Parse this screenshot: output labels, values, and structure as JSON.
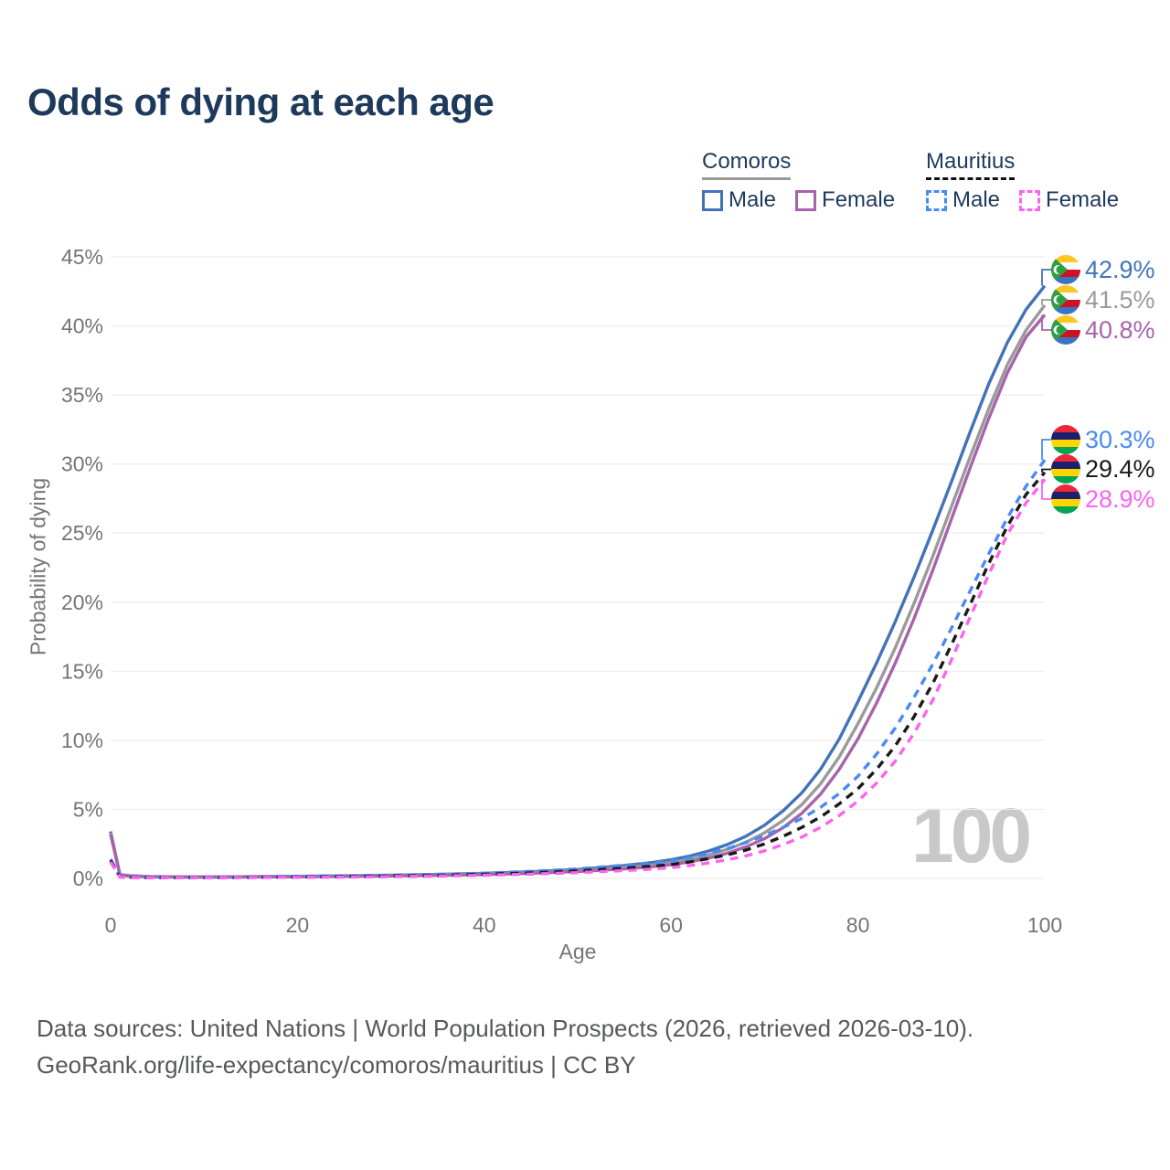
{
  "header": {
    "title": "Odds of dying at each age"
  },
  "legend": {
    "groups": [
      {
        "name": "Comoros",
        "line_style": "solid",
        "underline_color": "#999999",
        "items": [
          {
            "label": "Male",
            "color": "#4273b8",
            "dashed": false
          },
          {
            "label": "Female",
            "color": "#a763ab",
            "dashed": false
          }
        ]
      },
      {
        "name": "Mauritius",
        "line_style": "dashed",
        "underline_color": "#111111",
        "items": [
          {
            "label": "Male",
            "color": "#4a8af4",
            "dashed": true
          },
          {
            "label": "Female",
            "color": "#fb63f0",
            "dashed": true
          }
        ]
      }
    ]
  },
  "chart_data": {
    "type": "line",
    "title": "Odds of dying at each age",
    "xlabel": "Age",
    "ylabel": "Probability of dying",
    "x_range": [
      0,
      100
    ],
    "y_range_pct": [
      0,
      45
    ],
    "xticks": [
      0,
      20,
      40,
      60,
      80,
      100
    ],
    "yticks_pct": [
      0,
      5,
      10,
      15,
      20,
      25,
      30,
      35,
      40,
      45
    ],
    "grid": true,
    "legend_position": "top-right",
    "watermark": "100",
    "series": [
      {
        "name": "Comoros Male",
        "country": "Comoros",
        "sex": "Male",
        "color": "#4273b8",
        "dashed": false,
        "flag": "comoros",
        "end_label": "42.9%",
        "points": [
          [
            0,
            3.4
          ],
          [
            1,
            0.28
          ],
          [
            2,
            0.2
          ],
          [
            4,
            0.14
          ],
          [
            8,
            0.11
          ],
          [
            12,
            0.11
          ],
          [
            16,
            0.13
          ],
          [
            20,
            0.15
          ],
          [
            25,
            0.19
          ],
          [
            30,
            0.23
          ],
          [
            35,
            0.29
          ],
          [
            40,
            0.37
          ],
          [
            45,
            0.48
          ],
          [
            50,
            0.65
          ],
          [
            55,
            0.93
          ],
          [
            58,
            1.15
          ],
          [
            60,
            1.35
          ],
          [
            62,
            1.62
          ],
          [
            64,
            1.98
          ],
          [
            66,
            2.45
          ],
          [
            68,
            3.05
          ],
          [
            70,
            3.85
          ],
          [
            72,
            4.9
          ],
          [
            74,
            6.2
          ],
          [
            76,
            7.9
          ],
          [
            78,
            10.1
          ],
          [
            80,
            12.8
          ],
          [
            82,
            15.6
          ],
          [
            84,
            18.6
          ],
          [
            86,
            21.8
          ],
          [
            88,
            25.2
          ],
          [
            90,
            28.7
          ],
          [
            92,
            32.3
          ],
          [
            94,
            35.8
          ],
          [
            96,
            38.8
          ],
          [
            98,
            41.2
          ],
          [
            100,
            42.9
          ]
        ]
      },
      {
        "name": "Comoros Both sexes",
        "country": "Comoros",
        "sex": "Both",
        "color": "#9a9a9a",
        "dashed": false,
        "flag": "comoros",
        "end_label": "41.5%",
        "points": [
          [
            0,
            3.3
          ],
          [
            1,
            0.26
          ],
          [
            2,
            0.18
          ],
          [
            4,
            0.13
          ],
          [
            8,
            0.1
          ],
          [
            12,
            0.1
          ],
          [
            16,
            0.12
          ],
          [
            20,
            0.14
          ],
          [
            25,
            0.17
          ],
          [
            30,
            0.2
          ],
          [
            35,
            0.25
          ],
          [
            40,
            0.32
          ],
          [
            45,
            0.42
          ],
          [
            50,
            0.57
          ],
          [
            55,
            0.8
          ],
          [
            58,
            0.98
          ],
          [
            60,
            1.15
          ],
          [
            62,
            1.38
          ],
          [
            64,
            1.7
          ],
          [
            66,
            2.1
          ],
          [
            68,
            2.62
          ],
          [
            70,
            3.3
          ],
          [
            72,
            4.2
          ],
          [
            74,
            5.35
          ],
          [
            76,
            6.85
          ],
          [
            78,
            8.8
          ],
          [
            80,
            11.2
          ],
          [
            82,
            13.8
          ],
          [
            84,
            16.7
          ],
          [
            86,
            19.9
          ],
          [
            88,
            23.3
          ],
          [
            90,
            26.9
          ],
          [
            92,
            30.5
          ],
          [
            94,
            34
          ],
          [
            96,
            37.2
          ],
          [
            98,
            39.7
          ],
          [
            100,
            41.5
          ]
        ]
      },
      {
        "name": "Comoros Female",
        "country": "Comoros",
        "sex": "Female",
        "color": "#a763ab",
        "dashed": false,
        "flag": "comoros",
        "end_label": "40.8%",
        "points": [
          [
            0,
            3.2
          ],
          [
            1,
            0.24
          ],
          [
            2,
            0.17
          ],
          [
            4,
            0.12
          ],
          [
            8,
            0.09
          ],
          [
            12,
            0.09
          ],
          [
            16,
            0.11
          ],
          [
            20,
            0.12
          ],
          [
            25,
            0.15
          ],
          [
            30,
            0.18
          ],
          [
            35,
            0.22
          ],
          [
            40,
            0.28
          ],
          [
            45,
            0.37
          ],
          [
            50,
            0.5
          ],
          [
            55,
            0.69
          ],
          [
            58,
            0.85
          ],
          [
            60,
            1
          ],
          [
            62,
            1.2
          ],
          [
            64,
            1.47
          ],
          [
            66,
            1.82
          ],
          [
            68,
            2.28
          ],
          [
            70,
            2.88
          ],
          [
            72,
            3.68
          ],
          [
            74,
            4.72
          ],
          [
            76,
            6.1
          ],
          [
            78,
            7.9
          ],
          [
            80,
            10.1
          ],
          [
            82,
            12.7
          ],
          [
            84,
            15.6
          ],
          [
            86,
            18.8
          ],
          [
            88,
            22.3
          ],
          [
            90,
            26
          ],
          [
            92,
            29.7
          ],
          [
            94,
            33.3
          ],
          [
            96,
            36.6
          ],
          [
            98,
            39.2
          ],
          [
            100,
            40.8
          ]
        ]
      },
      {
        "name": "Mauritius Male",
        "country": "Mauritius",
        "sex": "Male",
        "color": "#4a8af4",
        "dashed": true,
        "flag": "mauritius",
        "end_label": "30.3%",
        "points": [
          [
            0,
            1.4
          ],
          [
            1,
            0.12
          ],
          [
            2,
            0.09
          ],
          [
            4,
            0.07
          ],
          [
            8,
            0.06
          ],
          [
            12,
            0.07
          ],
          [
            16,
            0.1
          ],
          [
            20,
            0.13
          ],
          [
            25,
            0.17
          ],
          [
            30,
            0.22
          ],
          [
            35,
            0.29
          ],
          [
            40,
            0.38
          ],
          [
            45,
            0.51
          ],
          [
            50,
            0.69
          ],
          [
            55,
            0.95
          ],
          [
            58,
            1.12
          ],
          [
            60,
            1.25
          ],
          [
            62,
            1.5
          ],
          [
            64,
            1.8
          ],
          [
            66,
            2.15
          ],
          [
            68,
            2.6
          ],
          [
            70,
            3.1
          ],
          [
            72,
            3.7
          ],
          [
            74,
            4.35
          ],
          [
            76,
            5.15
          ],
          [
            78,
            6.15
          ],
          [
            80,
            7.4
          ],
          [
            82,
            9
          ],
          [
            84,
            10.9
          ],
          [
            86,
            13.1
          ],
          [
            88,
            15.5
          ],
          [
            90,
            18.1
          ],
          [
            92,
            20.8
          ],
          [
            94,
            23.5
          ],
          [
            96,
            26.1
          ],
          [
            98,
            28.4
          ],
          [
            100,
            30.3
          ]
        ]
      },
      {
        "name": "Mauritius Both sexes",
        "country": "Mauritius",
        "sex": "Both",
        "color": "#1a1a1a",
        "dashed": true,
        "flag": "mauritius",
        "end_label": "29.4%",
        "points": [
          [
            0,
            1.3
          ],
          [
            1,
            0.11
          ],
          [
            2,
            0.08
          ],
          [
            4,
            0.06
          ],
          [
            8,
            0.06
          ],
          [
            12,
            0.06
          ],
          [
            16,
            0.08
          ],
          [
            20,
            0.1
          ],
          [
            25,
            0.13
          ],
          [
            30,
            0.17
          ],
          [
            35,
            0.22
          ],
          [
            40,
            0.3
          ],
          [
            45,
            0.4
          ],
          [
            50,
            0.54
          ],
          [
            55,
            0.74
          ],
          [
            58,
            0.88
          ],
          [
            60,
            1
          ],
          [
            62,
            1.2
          ],
          [
            64,
            1.43
          ],
          [
            66,
            1.7
          ],
          [
            68,
            2.05
          ],
          [
            70,
            2.5
          ],
          [
            72,
            3.05
          ],
          [
            74,
            3.7
          ],
          [
            76,
            4.45
          ],
          [
            78,
            5.4
          ],
          [
            80,
            6.5
          ],
          [
            82,
            7.9
          ],
          [
            84,
            9.6
          ],
          [
            86,
            11.7
          ],
          [
            88,
            14.1
          ],
          [
            90,
            16.9
          ],
          [
            92,
            19.8
          ],
          [
            94,
            22.8
          ],
          [
            96,
            25.5
          ],
          [
            98,
            27.8
          ],
          [
            100,
            29.4
          ]
        ]
      },
      {
        "name": "Mauritius Female",
        "country": "Mauritius",
        "sex": "Female",
        "color": "#fb63f0",
        "dashed": true,
        "flag": "mauritius",
        "end_label": "28.9%",
        "points": [
          [
            0,
            1.2
          ],
          [
            1,
            0.1
          ],
          [
            2,
            0.07
          ],
          [
            4,
            0.05
          ],
          [
            8,
            0.05
          ],
          [
            12,
            0.05
          ],
          [
            16,
            0.07
          ],
          [
            20,
            0.08
          ],
          [
            25,
            0.1
          ],
          [
            30,
            0.13
          ],
          [
            35,
            0.17
          ],
          [
            40,
            0.23
          ],
          [
            45,
            0.31
          ],
          [
            50,
            0.42
          ],
          [
            55,
            0.57
          ],
          [
            58,
            0.68
          ],
          [
            60,
            0.78
          ],
          [
            62,
            0.93
          ],
          [
            64,
            1.12
          ],
          [
            66,
            1.35
          ],
          [
            68,
            1.63
          ],
          [
            70,
            2
          ],
          [
            72,
            2.45
          ],
          [
            74,
            3
          ],
          [
            76,
            3.7
          ],
          [
            78,
            4.55
          ],
          [
            80,
            5.6
          ],
          [
            82,
            6.9
          ],
          [
            84,
            8.5
          ],
          [
            86,
            10.5
          ],
          [
            88,
            12.9
          ],
          [
            90,
            15.8
          ],
          [
            92,
            18.9
          ],
          [
            94,
            22
          ],
          [
            96,
            24.9
          ],
          [
            98,
            27.2
          ],
          [
            100,
            28.9
          ]
        ]
      }
    ]
  },
  "footer": {
    "line1": "Data sources: United Nations | World Population Prospects (2026, retrieved 2026-03-10).",
    "line2": "GeoRank.org/life-expectancy/comoros/mauritius | CC BY"
  }
}
